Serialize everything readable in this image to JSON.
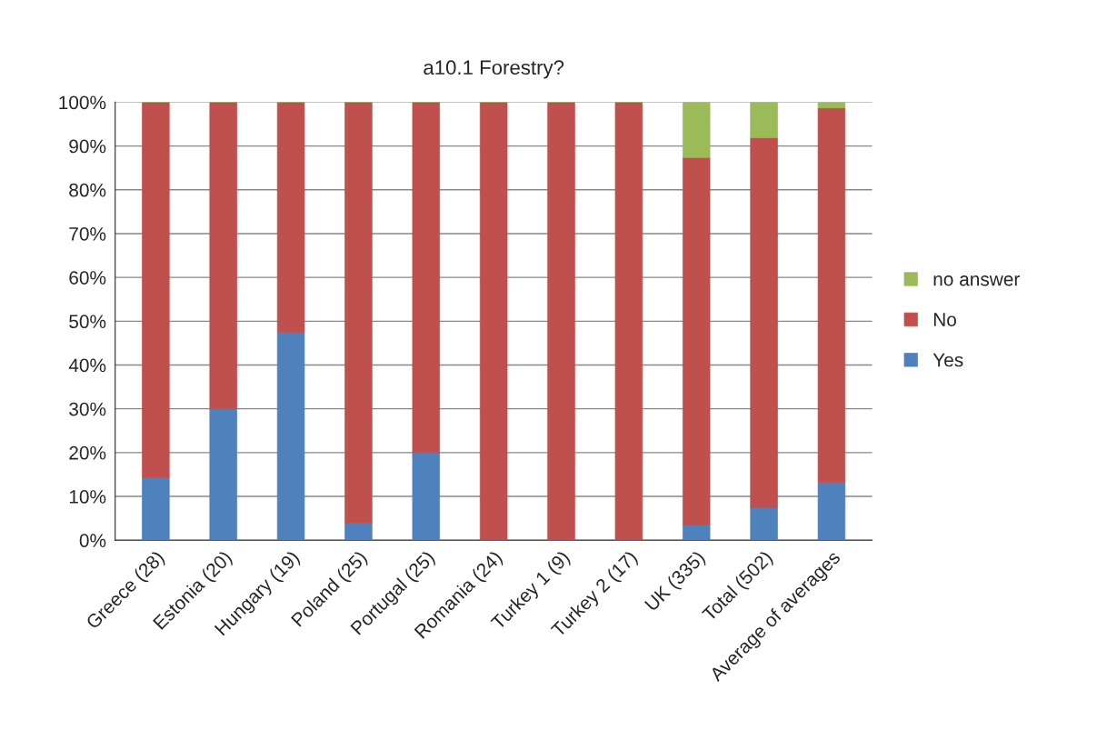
{
  "chart_data": {
    "type": "bar",
    "title": "a10.1 Forestry?",
    "categories": [
      "Greece (28)",
      "Estonia (20)",
      "Hungary (19)",
      "Poland (25)",
      "Portugal (25)",
      "Romania (24)",
      "Turkey 1 (9)",
      "Turkey 2 (17)",
      "UK (335)",
      "Total (502)",
      "Average of averages"
    ],
    "series": [
      {
        "name": "Yes",
        "color": "#4f81bd",
        "values": [
          14.3,
          30,
          47.4,
          4,
          20,
          0,
          0,
          0,
          3.6,
          7.5,
          13.2
        ]
      },
      {
        "name": "No",
        "color": "#c0504d",
        "values": [
          85.7,
          70,
          52.6,
          96,
          80,
          100,
          100,
          100,
          83.8,
          84.4,
          85.5
        ]
      },
      {
        "name": "no answer",
        "color": "#9bbb59",
        "values": [
          0,
          0,
          0,
          0,
          0,
          0,
          0,
          0,
          12.6,
          8.1,
          1.3
        ]
      }
    ],
    "stacked": true,
    "ylim": [
      0,
      100
    ],
    "yticks": [
      {
        "value": 0,
        "label": "0%"
      },
      {
        "value": 10,
        "label": "10%"
      },
      {
        "value": 20,
        "label": "20%"
      },
      {
        "value": 30,
        "label": "30%"
      },
      {
        "value": 40,
        "label": "40%"
      },
      {
        "value": 50,
        "label": "50%"
      },
      {
        "value": 60,
        "label": "60%"
      },
      {
        "value": 70,
        "label": "70%"
      },
      {
        "value": 80,
        "label": "80%"
      },
      {
        "value": 90,
        "label": "90%"
      },
      {
        "value": 100,
        "label": "100%"
      }
    ],
    "grid": "y",
    "legend": "right"
  }
}
